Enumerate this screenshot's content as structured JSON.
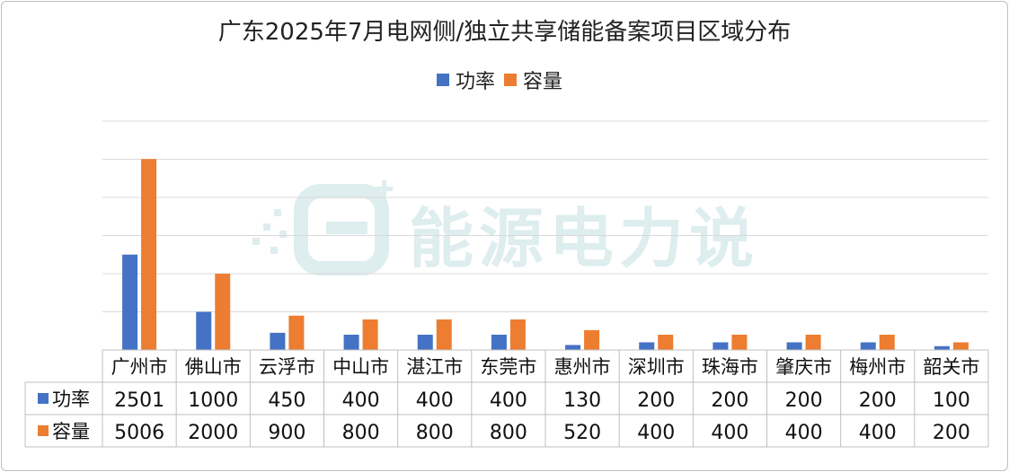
{
  "chart_data": {
    "type": "bar",
    "title": "广东2025年7月电网侧/独立共享储能备案项目区域分布",
    "categories": [
      "广州市",
      "佛山市",
      "云浮市",
      "中山市",
      "湛江市",
      "东莞市",
      "惠州市",
      "深圳市",
      "珠海市",
      "肇庆市",
      "梅州市",
      "韶关市"
    ],
    "series": [
      {
        "name": "功率",
        "color": "#4472c4",
        "values": [
          2501,
          1000,
          450,
          400,
          400,
          400,
          130,
          200,
          200,
          200,
          200,
          100
        ]
      },
      {
        "name": "容量",
        "color": "#ed7d31",
        "values": [
          5006,
          2000,
          900,
          800,
          800,
          800,
          520,
          400,
          400,
          400,
          400,
          200
        ]
      }
    ],
    "ylim": [
      0,
      6000
    ],
    "grid": true,
    "legend_position": "top-center",
    "data_table": true
  },
  "watermark": {
    "text": "能源电力说"
  }
}
